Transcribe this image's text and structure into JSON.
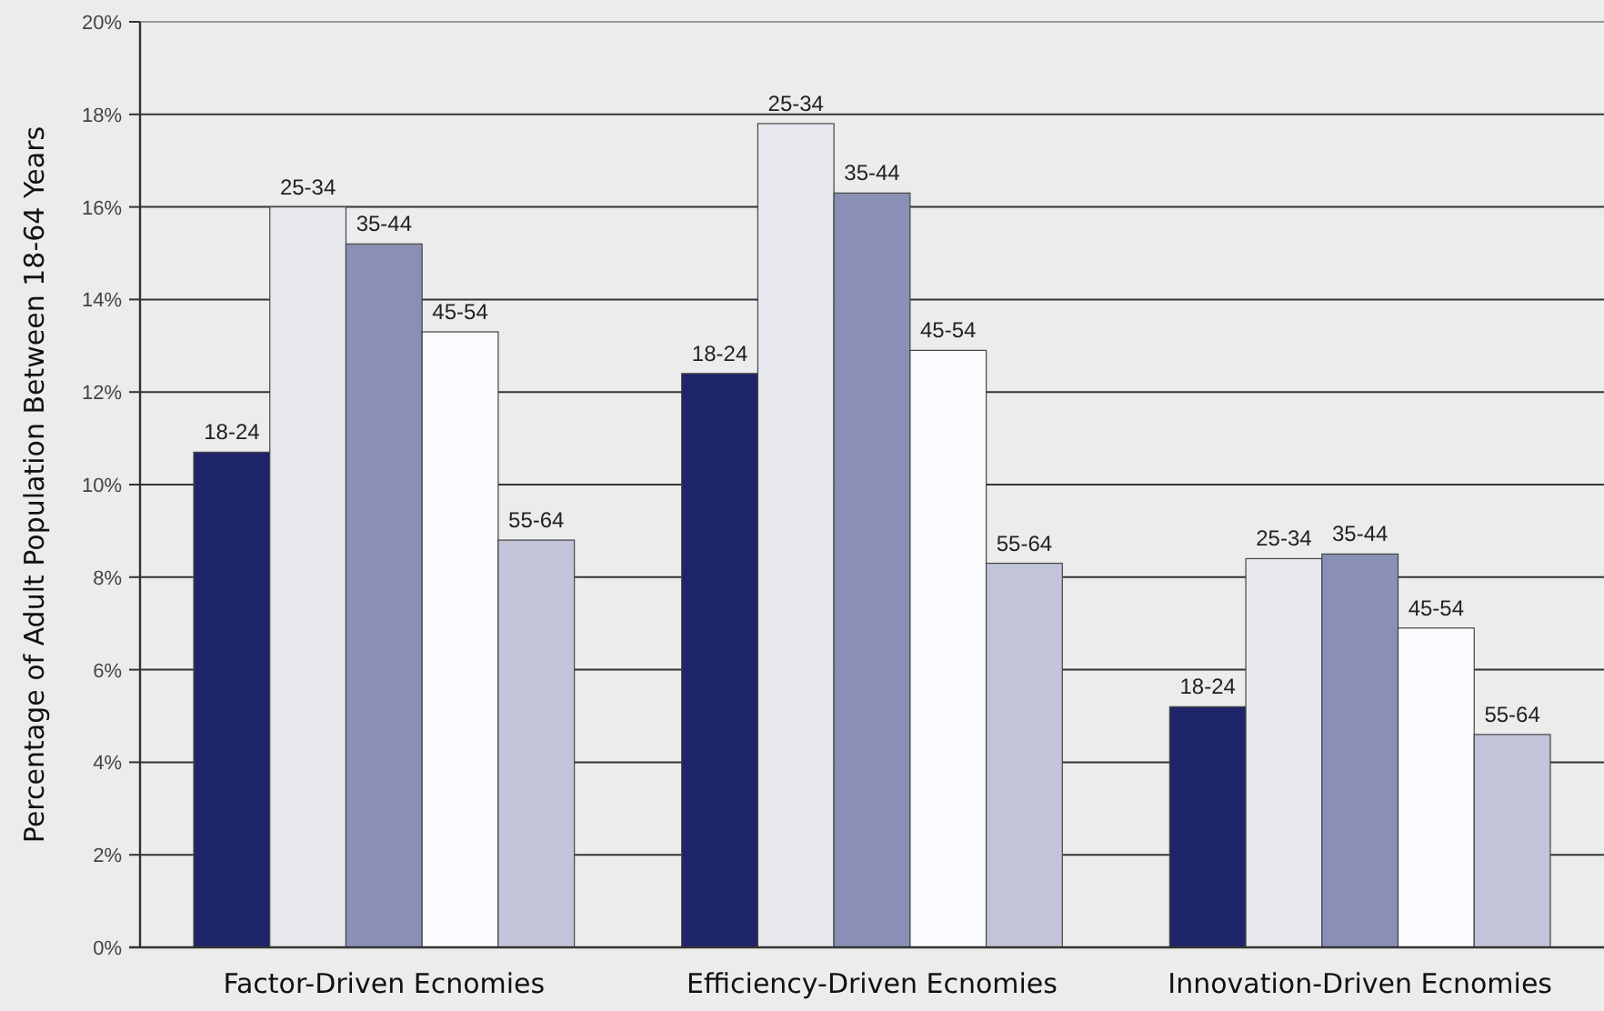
{
  "chart_data": {
    "type": "bar",
    "ylabel": "Percentage of Adult Population Between 18-64 Years",
    "categories": [
      "Factor-Driven Ecnomies",
      "Efficiency-Driven Ecnomies",
      "Innovation-Driven Ecnomies"
    ],
    "series": [
      {
        "name": "18-24",
        "color": "#1e2469",
        "values": [
          10.7,
          12.4,
          5.2
        ]
      },
      {
        "name": "25-34",
        "color": "#e8e9ef",
        "values": [
          16.0,
          17.8,
          8.4
        ]
      },
      {
        "name": "35-44",
        "color": "#8a90b5",
        "values": [
          15.2,
          16.3,
          8.5
        ]
      },
      {
        "name": "45-54",
        "color": "#fafbfe",
        "values": [
          13.3,
          12.9,
          6.9
        ]
      },
      {
        "name": "55-64",
        "color": "#c2c5d9",
        "values": [
          8.8,
          8.3,
          4.6
        ]
      }
    ],
    "ylim": [
      0,
      20
    ],
    "yticks": [
      {
        "value": 0,
        "label": "0%"
      },
      {
        "value": 2,
        "label": "2%"
      },
      {
        "value": 4,
        "label": "4%"
      },
      {
        "value": 6,
        "label": "6%"
      },
      {
        "value": 8,
        "label": "8%"
      },
      {
        "value": 10,
        "label": "10%"
      },
      {
        "value": 12,
        "label": "12%"
      },
      {
        "value": 14,
        "label": "14%"
      },
      {
        "value": 16,
        "label": "16%"
      },
      {
        "value": 18,
        "label": "18%"
      },
      {
        "value": 20,
        "label": "20%"
      }
    ],
    "grid": "y"
  }
}
